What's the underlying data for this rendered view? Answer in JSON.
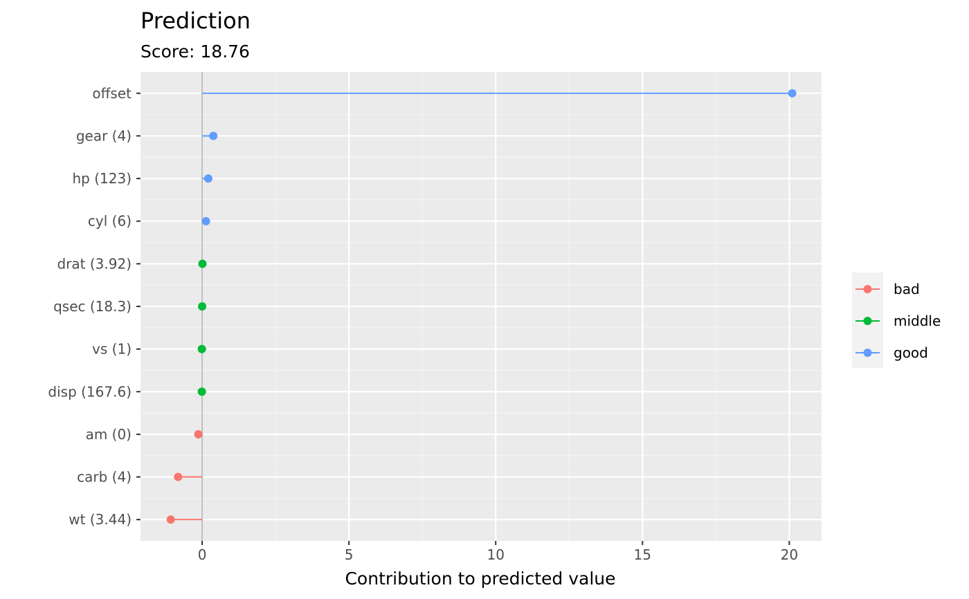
{
  "chart_data": {
    "type": "lollipop",
    "title": "Prediction",
    "subtitle": "Score: 18.76",
    "xlabel": "Contribution to predicted value",
    "ylabel": "",
    "xlim": [
      -2.1,
      21.1
    ],
    "x_ticks": [
      0,
      5,
      10,
      15,
      20
    ],
    "x_tick_labels": [
      "0",
      "5",
      "10",
      "15",
      "20"
    ],
    "baseline": 0,
    "grid": true,
    "legend_position": "right",
    "categories": [
      "offset",
      "gear (4)",
      "hp (123)",
      "cyl (6)",
      "drat (3.92)",
      "qsec (18.3)",
      "vs (1)",
      "disp (167.6)",
      "am (0)",
      "carb (4)",
      "wt (3.44)"
    ],
    "values": [
      20.1,
      0.38,
      0.21,
      0.13,
      0.01,
      0.0,
      -0.01,
      -0.01,
      -0.13,
      -0.82,
      -1.07
    ],
    "groups": [
      "good",
      "good",
      "good",
      "good",
      "middle",
      "middle",
      "middle",
      "middle",
      "bad",
      "bad",
      "bad"
    ],
    "legend": [
      {
        "name": "bad",
        "color": "#f8766d"
      },
      {
        "name": "middle",
        "color": "#00ba38"
      },
      {
        "name": "good",
        "color": "#619cff"
      }
    ],
    "colors": {
      "panel_background": "#ebebeb",
      "grid_major": "#ffffff",
      "grid_minor": "#f5f5f5",
      "baseline": "#bebebe",
      "tick": "#333333",
      "legend_background": "#f2f2f2"
    }
  }
}
